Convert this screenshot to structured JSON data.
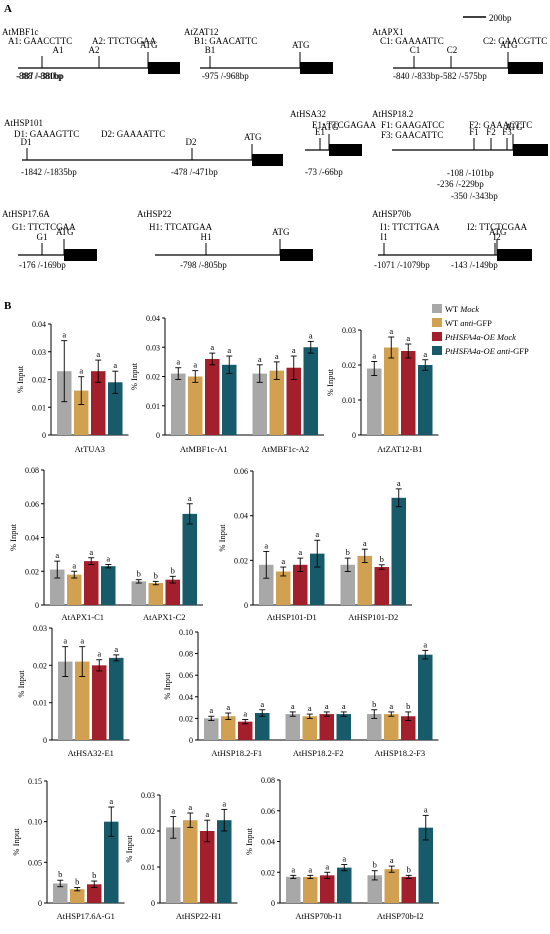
{
  "panel_a": {
    "label": "A",
    "scale_label": "200bp",
    "genes": [
      {
        "name": "AtMBF1c",
        "sites_text": [
          "A1: GAACCTTC",
          "A2: TTCTGGAA"
        ],
        "markers": [
          {
            "label": "A1",
            "pos": "-888 /-881bp"
          },
          {
            "label": "A2",
            "pos": "-387 /-380bp"
          }
        ],
        "atg": "ATG"
      },
      {
        "name": "AtZAT12",
        "sites_text": [
          "B1: GAACATTC"
        ],
        "markers": [
          {
            "label": "B1",
            "pos": "-975 /-968bp"
          }
        ],
        "atg": "ATG"
      },
      {
        "name": "AtAPX1",
        "sites_text": [
          "C1: GAAAATTC",
          "C2: GAACGTTC"
        ],
        "markers": [
          {
            "label": "C1",
            "pos": "-840 /-833bp"
          },
          {
            "label": "C2",
            "pos": "-582 /-575bp"
          }
        ],
        "atg": "ATG"
      },
      {
        "name": "AtHSP101",
        "sites_text": [
          "D1: GAAAGTTC",
          "D2: GAAAATTC"
        ],
        "markers": [
          {
            "label": "D1",
            "pos": "-1842 /-1835bp"
          },
          {
            "label": "D2",
            "pos": "-478 /-471bp"
          }
        ],
        "atg": "ATG"
      },
      {
        "name": "AtHSA32",
        "sites_text": [
          "E1: TTCGAGAA"
        ],
        "markers": [
          {
            "label": "E1",
            "pos": "-73 /-66bp"
          }
        ],
        "atg": "ATG"
      },
      {
        "name": "AtHSP18.2",
        "sites_text": [
          "F1: GAAGATCC",
          "F2: GAAACTTC",
          "F3: GAACATTC"
        ],
        "markers": [
          {
            "label": "F1",
            "pos": "-350 /-343bp"
          },
          {
            "label": "F2",
            "pos": "-236 /-229bp"
          },
          {
            "label": "F3",
            "pos": "-108 /-101bp"
          }
        ],
        "atg": "ATG"
      },
      {
        "name": "AtHSP17.6A",
        "sites_text": [
          "G1: TTCTCGAA"
        ],
        "markers": [
          {
            "label": "G1",
            "pos": "-176 /-169bp"
          }
        ],
        "atg": "ATG"
      },
      {
        "name": "AtHSP22",
        "sites_text": [
          "H1: TTCATGAA"
        ],
        "markers": [
          {
            "label": "H1",
            "pos": "-798 /-805bp"
          }
        ],
        "atg": "ATG"
      },
      {
        "name": "AtHSP70b",
        "sites_text": [
          "I1: TTCTTGAA",
          "I2: TTCTCGAA"
        ],
        "markers": [
          {
            "label": "I1",
            "pos": "-1071 /-1079bp"
          },
          {
            "label": "I2",
            "pos": "-143 /-149bp"
          }
        ],
        "atg": "ATG"
      }
    ]
  },
  "panel_b_label": "B",
  "legend": [
    {
      "name": "WT Mock",
      "plain": "WT ",
      "italic": "Mock",
      "color": "#a8a8a8"
    },
    {
      "name": "WT anti-GFP",
      "plain": "WT ",
      "italic": "anti",
      "suffix": "-GFP",
      "color": "#d1a050"
    },
    {
      "name": "PtHSFA4a-OE Mock",
      "italic": "PtHSFA4a-OE Mock",
      "color": "#a31f2c"
    },
    {
      "name": "PtHSFA4a-OE anti-GFP",
      "italic": "PtHSFA4a-OE anti",
      "suffix": "-GFP",
      "color": "#175a6a"
    }
  ],
  "chart_data": [
    {
      "type": "bar",
      "ylabel": "% Input",
      "ylim": [
        0,
        0.04
      ],
      "yticks": [
        "0",
        "0.01",
        "0.02",
        "0.03",
        "0.04"
      ],
      "categories": [
        "AtTUA3"
      ],
      "values": [
        [
          0.023,
          0.016,
          0.023,
          0.019
        ]
      ],
      "errors": [
        [
          0.011,
          0.005,
          0.004,
          0.004
        ]
      ],
      "letters": [
        [
          "a",
          "a",
          "a",
          "a"
        ]
      ]
    },
    {
      "type": "bar",
      "ylabel": "% Input",
      "ylim": [
        0,
        0.04
      ],
      "yticks": [
        "0",
        "0.01",
        "0.02",
        "0.03",
        "0.04"
      ],
      "categories": [
        "AtMBF1c-A1",
        "AtMBF1c-A2"
      ],
      "values": [
        [
          0.021,
          0.02,
          0.026,
          0.024
        ],
        [
          0.021,
          0.022,
          0.023,
          0.03
        ]
      ],
      "errors": [
        [
          0.002,
          0.002,
          0.002,
          0.003
        ],
        [
          0.003,
          0.003,
          0.004,
          0.002
        ]
      ],
      "letters": [
        [
          "a",
          "a",
          "a",
          "a"
        ],
        [
          "a",
          "a",
          "a",
          "a"
        ]
      ]
    },
    {
      "type": "bar",
      "ylabel": "% Input",
      "ylim": [
        0,
        0.03
      ],
      "yticks": [
        "0",
        "0.01",
        "0.02",
        "0.03"
      ],
      "categories": [
        "AtZAT12-B1"
      ],
      "values": [
        [
          0.019,
          0.025,
          0.024,
          0.02
        ]
      ],
      "errors": [
        [
          0.002,
          0.003,
          0.002,
          0.0015
        ]
      ],
      "letters": [
        [
          "a",
          "a",
          "a",
          "a"
        ]
      ]
    },
    {
      "type": "bar",
      "ylabel": "% Input",
      "ylim": [
        0,
        0.08
      ],
      "yticks": [
        "0",
        "0.02",
        "0.04",
        "0.06",
        "0.08"
      ],
      "categories": [
        "AtAPX1-C1",
        "AtAPX1-C2"
      ],
      "values": [
        [
          0.021,
          0.018,
          0.026,
          0.023
        ],
        [
          0.014,
          0.013,
          0.015,
          0.054
        ]
      ],
      "errors": [
        [
          0.005,
          0.002,
          0.002,
          0.001
        ],
        [
          0.001,
          0.001,
          0.002,
          0.006
        ]
      ],
      "letters": [
        [
          "a",
          "a",
          "a",
          "a"
        ],
        [
          "b",
          "b",
          "b",
          "a"
        ]
      ]
    },
    {
      "type": "bar",
      "ylabel": "% Input",
      "ylim": [
        0,
        0.06
      ],
      "yticks": [
        "0",
        "0.02",
        "0.04",
        "0.06"
      ],
      "categories": [
        "AtHSP101-D1",
        "AtHSP101-D2"
      ],
      "values": [
        [
          0.018,
          0.015,
          0.018,
          0.023
        ],
        [
          0.018,
          0.022,
          0.017,
          0.048
        ]
      ],
      "errors": [
        [
          0.006,
          0.002,
          0.003,
          0.006
        ],
        [
          0.003,
          0.003,
          0.001,
          0.004
        ]
      ],
      "letters": [
        [
          "a",
          "a",
          "a",
          "a"
        ],
        [
          "b",
          "a",
          "b",
          "a"
        ]
      ]
    },
    {
      "type": "bar",
      "ylabel": "% Input",
      "ylim": [
        0,
        0.03
      ],
      "yticks": [
        "0",
        "0.01",
        "0.02",
        "0.03"
      ],
      "categories": [
        "AtHSA32-E1"
      ],
      "values": [
        [
          0.021,
          0.021,
          0.02,
          0.022
        ]
      ],
      "errors": [
        [
          0.004,
          0.004,
          0.0015,
          0.0008
        ]
      ],
      "letters": [
        [
          "a",
          "a",
          "a",
          "a"
        ]
      ]
    },
    {
      "type": "bar",
      "ylabel": "% Input",
      "ylim": [
        0,
        0.1
      ],
      "yticks": [
        "0",
        "0.02",
        "0.04",
        "0.06",
        "0.08",
        "0.10"
      ],
      "categories": [
        "AtHSP18.2-F1",
        "AtHSP18.2-F2",
        "AtHSP18.2-F3"
      ],
      "values": [
        [
          0.02,
          0.022,
          0.017,
          0.025
        ],
        [
          0.024,
          0.022,
          0.024,
          0.024
        ],
        [
          0.024,
          0.024,
          0.022,
          0.079
        ]
      ],
      "errors": [
        [
          0.002,
          0.003,
          0.002,
          0.003
        ],
        [
          0.002,
          0.002,
          0.002,
          0.002
        ],
        [
          0.004,
          0.002,
          0.004,
          0.004
        ]
      ],
      "letters": [
        [
          "a",
          "a",
          "a",
          "a"
        ],
        [
          "a",
          "a",
          "a",
          "a"
        ],
        [
          "b",
          "a",
          "b",
          "a"
        ]
      ]
    },
    {
      "type": "bar",
      "ylabel": "% Input",
      "ylim": [
        0,
        0.15
      ],
      "yticks": [
        "0",
        "0.05",
        "0.10",
        "0.15"
      ],
      "categories": [
        "AtHSP17.6A-G1"
      ],
      "values": [
        [
          0.024,
          0.017,
          0.023,
          0.1
        ]
      ],
      "errors": [
        [
          0.004,
          0.002,
          0.004,
          0.018
        ]
      ],
      "letters": [
        [
          "b",
          "b",
          "b",
          "a"
        ]
      ]
    },
    {
      "type": "bar",
      "ylabel": "% Input",
      "ylim": [
        0,
        0.03
      ],
      "yticks": [
        "0",
        "0.01",
        "0.02",
        "0.03"
      ],
      "categories": [
        "AtHSP22-H1"
      ],
      "values": [
        [
          0.021,
          0.023,
          0.02,
          0.023
        ]
      ],
      "errors": [
        [
          0.003,
          0.002,
          0.003,
          0.003
        ]
      ],
      "letters": [
        [
          "a",
          "a",
          "a",
          "a"
        ]
      ]
    },
    {
      "type": "bar",
      "ylabel": "% Input",
      "ylim": [
        0,
        0.08
      ],
      "yticks": [
        "0",
        "0.02",
        "0.04",
        "0.06",
        "0.08"
      ],
      "categories": [
        "AtHSP70b-I1",
        "AtHSP70b-I2"
      ],
      "values": [
        [
          0.017,
          0.017,
          0.018,
          0.023
        ],
        [
          0.018,
          0.022,
          0.017,
          0.049
        ]
      ],
      "errors": [
        [
          0.001,
          0.001,
          0.002,
          0.002
        ],
        [
          0.003,
          0.002,
          0.001,
          0.008
        ]
      ],
      "letters": [
        [
          "a",
          "a",
          "a",
          "a"
        ],
        [
          "b",
          "a",
          "b",
          "a"
        ]
      ]
    }
  ]
}
